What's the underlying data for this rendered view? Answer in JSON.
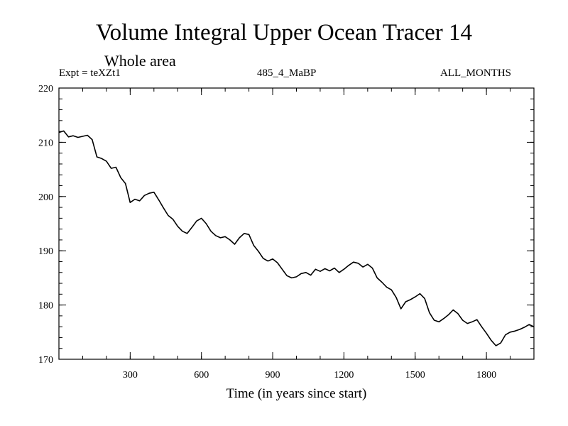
{
  "chart_data": {
    "type": "line",
    "title": "Volume Integral Upper Ocean Tracer 14",
    "subtitle": "Whole area",
    "expt_label": "Expt = teXZt1",
    "run_label": "485_4_MaBP",
    "period_label": "ALL_MONTHS",
    "xlabel": "Time (in years since start)",
    "ylabel": "",
    "xlim": [
      0,
      2000
    ],
    "ylim": [
      170,
      220
    ],
    "x_ticks": [
      300,
      600,
      900,
      1200,
      1500,
      1800
    ],
    "y_ticks": [
      170,
      180,
      190,
      200,
      210,
      220
    ],
    "grid": false,
    "series": [
      {
        "name": "Tracer 14",
        "x": [
          0,
          20,
          40,
          60,
          80,
          100,
          120,
          140,
          160,
          180,
          200,
          220,
          240,
          260,
          280,
          300,
          320,
          340,
          360,
          380,
          400,
          420,
          440,
          460,
          480,
          500,
          520,
          540,
          560,
          580,
          600,
          620,
          640,
          660,
          680,
          700,
          720,
          740,
          760,
          780,
          800,
          820,
          840,
          860,
          880,
          900,
          920,
          940,
          960,
          980,
          1000,
          1020,
          1040,
          1060,
          1080,
          1100,
          1120,
          1140,
          1160,
          1180,
          1200,
          1220,
          1240,
          1260,
          1280,
          1300,
          1320,
          1340,
          1360,
          1380,
          1400,
          1420,
          1440,
          1460,
          1480,
          1500,
          1520,
          1540,
          1560,
          1580,
          1600,
          1620,
          1640,
          1660,
          1680,
          1700,
          1720,
          1740,
          1760,
          1780,
          1800,
          1820,
          1840,
          1860,
          1880,
          1900,
          1920,
          1940,
          1960,
          1980,
          2000
        ],
        "values": [
          211.8,
          212.1,
          211.0,
          211.2,
          210.9,
          211.1,
          211.3,
          210.5,
          207.3,
          207.0,
          206.5,
          205.2,
          205.4,
          203.5,
          202.4,
          198.9,
          199.5,
          199.2,
          200.2,
          200.6,
          200.8,
          199.4,
          197.9,
          196.5,
          195.8,
          194.5,
          193.6,
          193.2,
          194.3,
          195.5,
          196.0,
          195.0,
          193.6,
          192.8,
          192.4,
          192.6,
          192.0,
          191.2,
          192.4,
          193.2,
          193.0,
          191.0,
          189.9,
          188.6,
          188.1,
          188.5,
          187.8,
          186.6,
          185.4,
          185.0,
          185.2,
          185.8,
          186.0,
          185.5,
          186.6,
          186.2,
          186.7,
          186.3,
          186.8,
          186.0,
          186.6,
          187.3,
          187.9,
          187.7,
          187.0,
          187.5,
          186.8,
          185.0,
          184.2,
          183.3,
          182.8,
          181.4,
          179.3,
          180.6,
          181.0,
          181.5,
          182.1,
          181.2,
          178.6,
          177.2,
          176.9,
          177.5,
          178.2,
          179.1,
          178.4,
          177.2,
          176.6,
          176.9,
          177.3,
          176.0,
          174.8,
          173.5,
          172.5,
          173.0,
          174.5,
          175.0,
          175.2,
          175.5,
          175.9,
          176.4,
          176.0
        ]
      }
    ]
  }
}
